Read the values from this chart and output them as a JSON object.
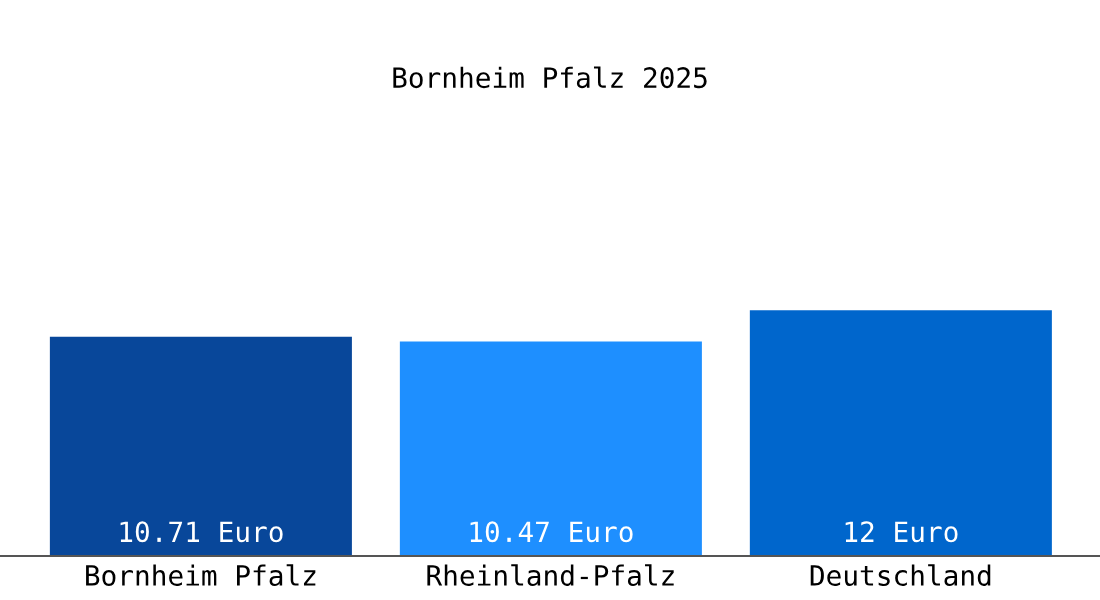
{
  "chart_data": {
    "type": "bar",
    "title": "Bornheim Pfalz 2025",
    "categories": [
      "Bornheim Pfalz",
      "Rheinland-Pfalz",
      "Deutschland"
    ],
    "values": [
      10.71,
      10.47,
      12
    ],
    "colors": [
      "#08479a",
      "#1e8fff",
      "#0066cc"
    ],
    "value_labels": [
      "10.71 Euro",
      "10.47 Euro",
      "12 Euro"
    ],
    "grid": false,
    "legend": false,
    "tick_labels": "x"
  }
}
